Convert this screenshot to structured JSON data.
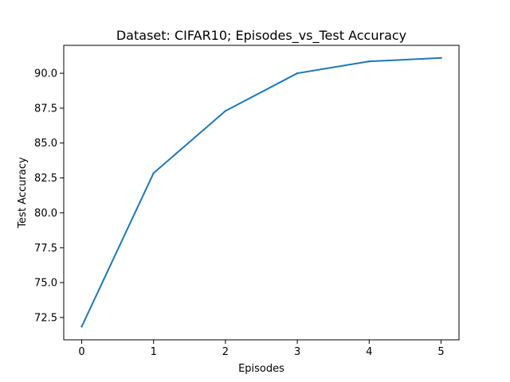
{
  "chart_data": {
    "type": "line",
    "title": "Dataset: CIFAR10; Episodes_vs_Test Accuracy",
    "xlabel": "Episodes",
    "ylabel": "Test Accuracy",
    "x": [
      0,
      1,
      2,
      3,
      4,
      5
    ],
    "series": [
      {
        "values": [
          71.85,
          82.85,
          87.3,
          90.0,
          90.85,
          91.1
        ]
      }
    ],
    "xlim": [
      -0.25,
      5.25
    ],
    "ylim": [
      70.9,
      92.0
    ],
    "xticks": [
      "0",
      "1",
      "2",
      "3",
      "4",
      "5"
    ],
    "yticks": [
      "72.5",
      "75.0",
      "77.5",
      "80.0",
      "82.5",
      "85.0",
      "87.5",
      "90.0"
    ],
    "grid": false,
    "line_color": "#1f77b4"
  }
}
